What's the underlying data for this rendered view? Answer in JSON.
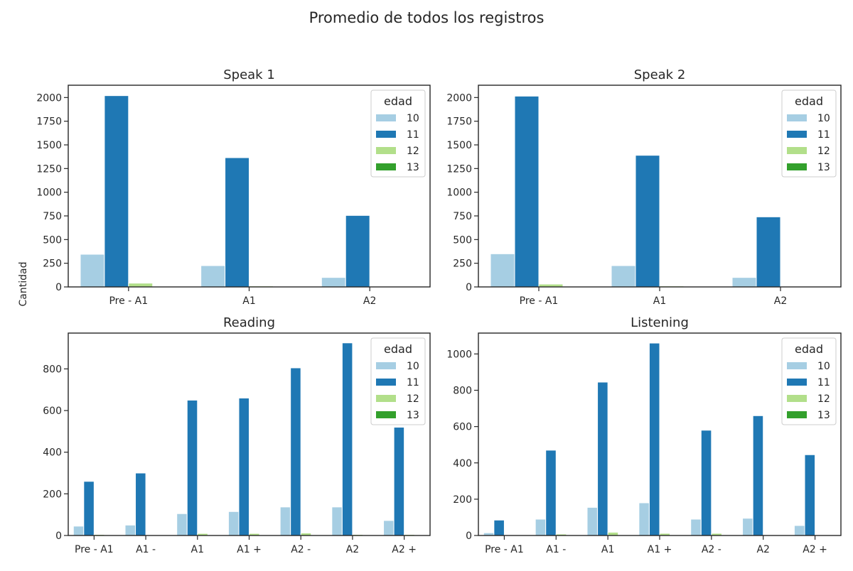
{
  "figure": {
    "suptitle": "Promedio de todos los registros",
    "ylabel": "Cantidad"
  },
  "colors": {
    "10": "#a6cee3",
    "11": "#1f78b4",
    "12": "#b2df8a",
    "13": "#33a02c"
  },
  "legend": {
    "title": "edad",
    "items": [
      "10",
      "11",
      "12",
      "13"
    ]
  },
  "chart_data": [
    {
      "type": "bar",
      "title": "Speak 1",
      "categories": [
        "Pre - A1",
        "A1",
        "A2"
      ],
      "ylim": [
        0,
        2130
      ],
      "yticks": [
        0,
        250,
        500,
        750,
        1000,
        1250,
        1500,
        1750,
        2000
      ],
      "legend_position": "top-right",
      "series": [
        {
          "name": "10",
          "values": [
            345,
            225,
            100
          ]
        },
        {
          "name": "11",
          "values": [
            2020,
            1365,
            755
          ]
        },
        {
          "name": "12",
          "values": [
            40,
            10,
            0
          ]
        },
        {
          "name": "13",
          "values": [
            0,
            0,
            0
          ]
        }
      ]
    },
    {
      "type": "bar",
      "title": "Speak 2",
      "categories": [
        "Pre - A1",
        "A1",
        "A2"
      ],
      "ylim": [
        0,
        2130
      ],
      "yticks": [
        0,
        250,
        500,
        750,
        1000,
        1250,
        1500,
        1750,
        2000
      ],
      "legend_position": "top-right",
      "series": [
        {
          "name": "10",
          "values": [
            350,
            225,
            100
          ]
        },
        {
          "name": "11",
          "values": [
            2015,
            1390,
            740
          ]
        },
        {
          "name": "12",
          "values": [
            30,
            10,
            0
          ]
        },
        {
          "name": "13",
          "values": [
            0,
            0,
            0
          ]
        }
      ]
    },
    {
      "type": "bar",
      "title": "Reading",
      "categories": [
        "Pre - A1",
        "A1 -",
        "A1",
        "A1 +",
        "A2 -",
        "A2",
        "A2 +"
      ],
      "ylim": [
        0,
        972
      ],
      "yticks": [
        0,
        200,
        400,
        600,
        800
      ],
      "legend_position": "top-right",
      "series": [
        {
          "name": "10",
          "values": [
            45,
            50,
            105,
            115,
            137,
            137,
            72
          ]
        },
        {
          "name": "11",
          "values": [
            260,
            300,
            650,
            660,
            805,
            925,
            520
          ]
        },
        {
          "name": "12",
          "values": [
            5,
            2,
            10,
            10,
            12,
            5,
            5
          ]
        },
        {
          "name": "13",
          "values": [
            0,
            0,
            0,
            0,
            0,
            0,
            0
          ]
        }
      ]
    },
    {
      "type": "bar",
      "title": "Listening",
      "categories": [
        "Pre - A1",
        "A1 -",
        "A1",
        "A1 +",
        "A2 -",
        "A2",
        "A2 +"
      ],
      "ylim": [
        0,
        1115
      ],
      "yticks": [
        0,
        200,
        400,
        600,
        800,
        1000
      ],
      "legend_position": "top-right",
      "series": [
        {
          "name": "10",
          "values": [
            15,
            90,
            155,
            180,
            90,
            95,
            55
          ]
        },
        {
          "name": "11",
          "values": [
            85,
            470,
            845,
            1060,
            580,
            660,
            445
          ]
        },
        {
          "name": "12",
          "values": [
            0,
            8,
            18,
            12,
            12,
            0,
            0
          ]
        },
        {
          "name": "13",
          "values": [
            0,
            0,
            0,
            0,
            0,
            0,
            0
          ]
        }
      ]
    }
  ]
}
